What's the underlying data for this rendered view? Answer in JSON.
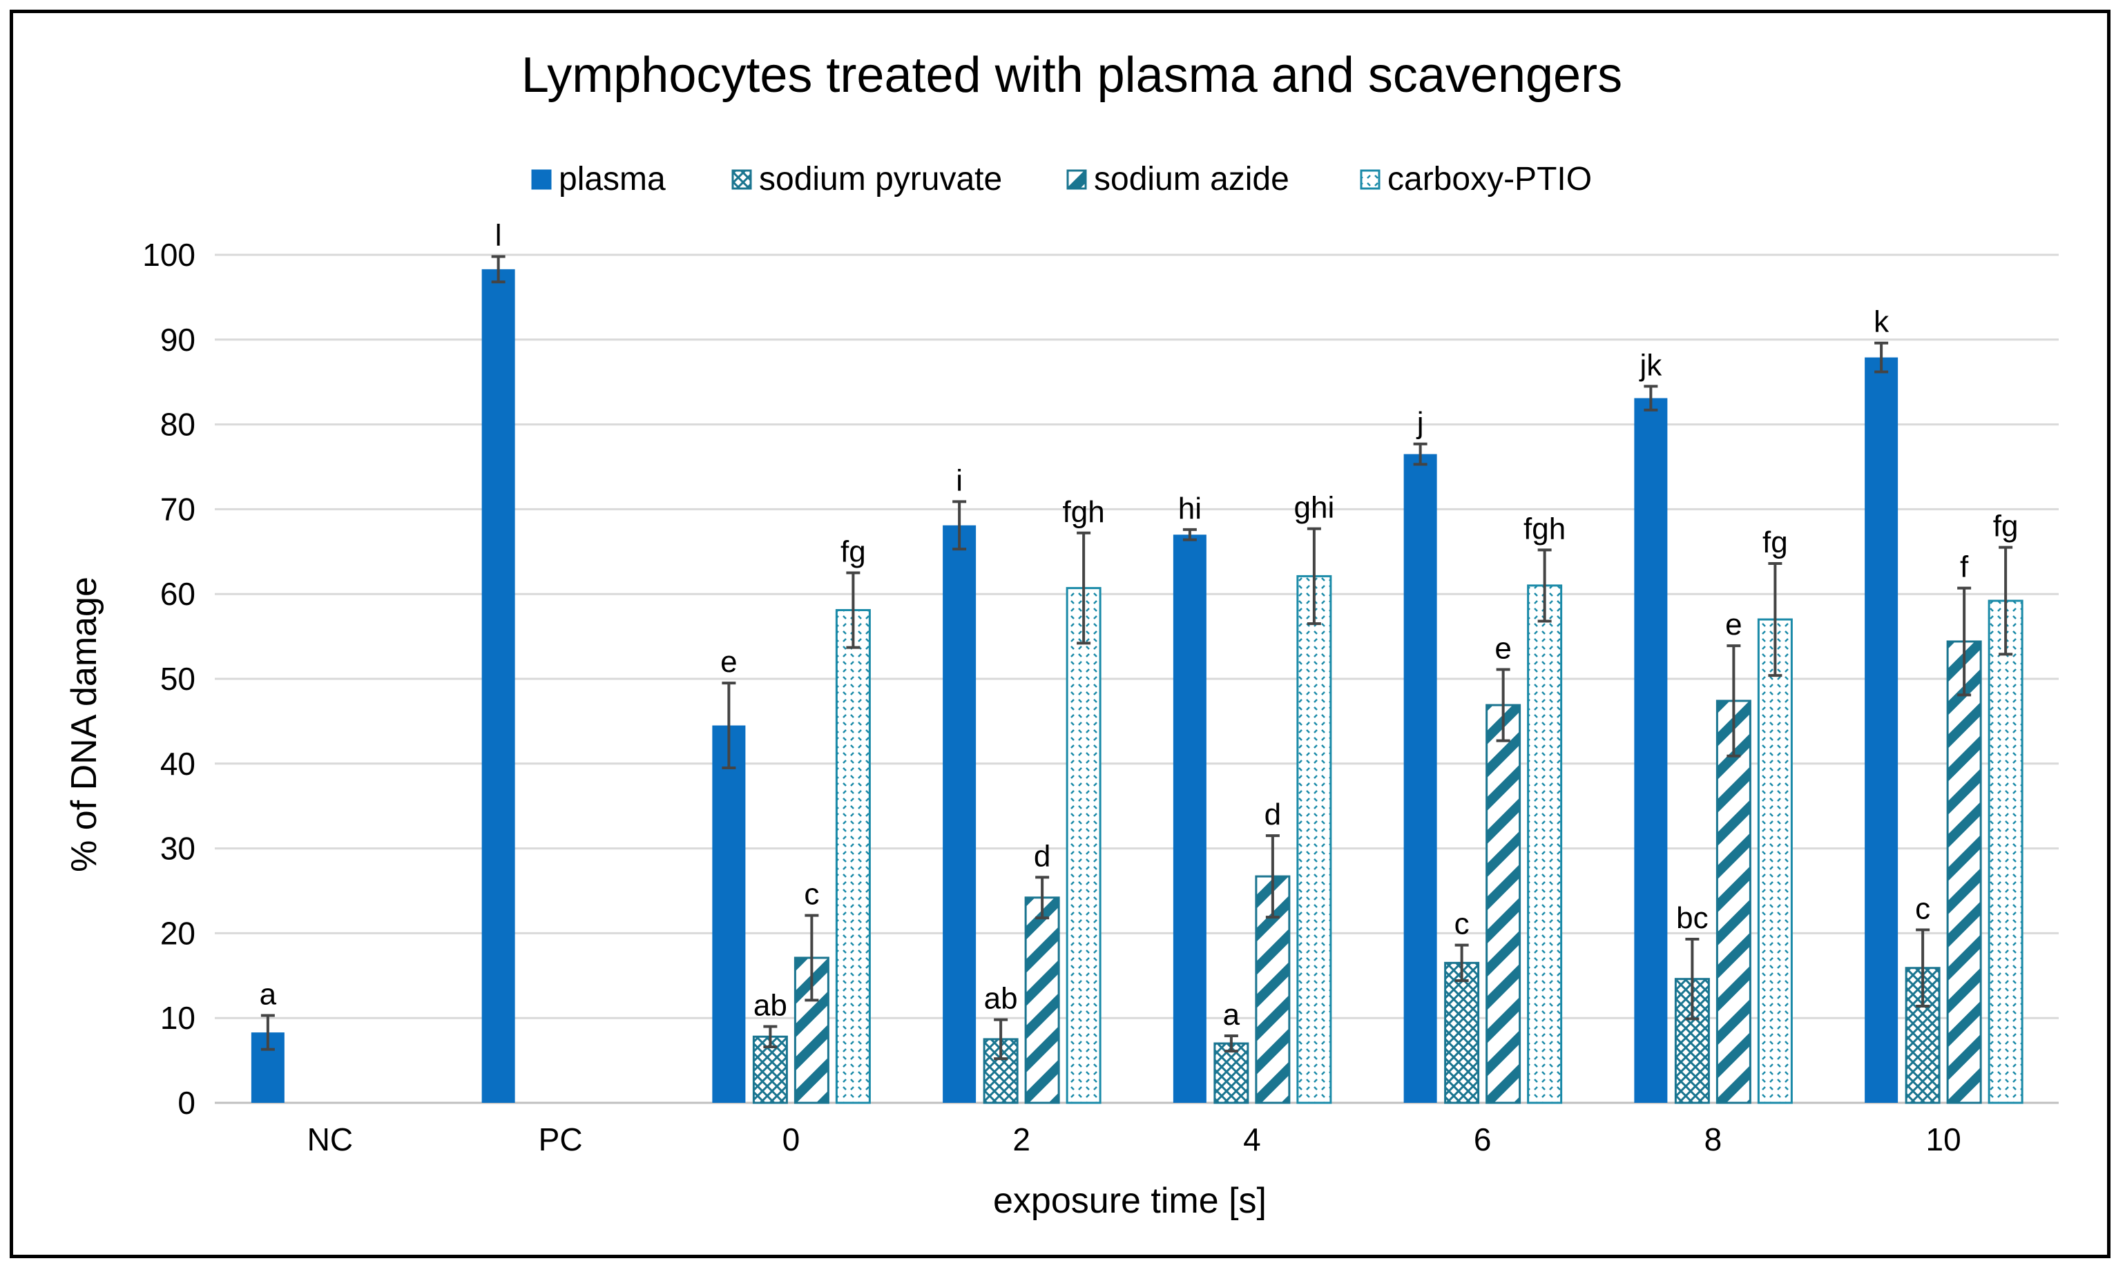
{
  "chart_data": {
    "type": "bar",
    "title": "Lymphocytes treated with plasma and scavengers",
    "xlabel": "exposure time [s]",
    "ylabel": "% of DNA damage",
    "ylim": [
      0,
      100
    ],
    "yticks": [
      0,
      10,
      20,
      30,
      40,
      50,
      60,
      70,
      80,
      90,
      100
    ],
    "grid": true,
    "legend_position": "top",
    "categories": [
      "NC",
      "PC",
      "0",
      "2",
      "4",
      "6",
      "8",
      "10"
    ],
    "series": [
      {
        "name": "plasma",
        "pattern": "solid",
        "color": "#0a6fc2",
        "values": [
          8.3,
          98.3,
          44.5,
          68.1,
          67.0,
          76.5,
          83.1,
          87.9
        ],
        "errors": [
          2.0,
          1.5,
          5.0,
          2.8,
          0.6,
          1.2,
          1.4,
          1.7
        ],
        "sig_labels": [
          "a",
          "l",
          "e",
          "i",
          "hi",
          "j",
          "jk",
          "k"
        ]
      },
      {
        "name": "sodium pyruvate",
        "pattern": "crosshatch",
        "color": "#1a7590",
        "values": [
          null,
          null,
          7.8,
          7.5,
          7.0,
          16.5,
          14.6,
          15.9
        ],
        "errors": [
          null,
          null,
          1.2,
          2.3,
          0.9,
          2.1,
          4.7,
          4.5
        ],
        "sig_labels": [
          "",
          "",
          "ab",
          "ab",
          "a",
          "c",
          "bc",
          "c"
        ]
      },
      {
        "name": "sodium azide",
        "pattern": "diagonal",
        "color": "#1a7590",
        "values": [
          null,
          null,
          17.1,
          24.2,
          26.7,
          46.9,
          47.4,
          54.4
        ],
        "errors": [
          null,
          null,
          5.0,
          2.4,
          4.8,
          4.2,
          6.5,
          6.3
        ],
        "sig_labels": [
          "",
          "",
          "c",
          "d",
          "d",
          "e",
          "e",
          "f"
        ]
      },
      {
        "name": "carboxy-PTIO",
        "pattern": "dotted",
        "color": "#1a8aa8",
        "values": [
          null,
          null,
          58.1,
          60.7,
          62.1,
          61.0,
          57.0,
          59.2
        ],
        "errors": [
          null,
          null,
          4.4,
          6.5,
          5.6,
          4.2,
          6.6,
          6.3
        ],
        "sig_labels": [
          "",
          "",
          "fg",
          "fgh",
          "ghi",
          "fgh",
          "fg",
          "fg"
        ]
      }
    ]
  }
}
